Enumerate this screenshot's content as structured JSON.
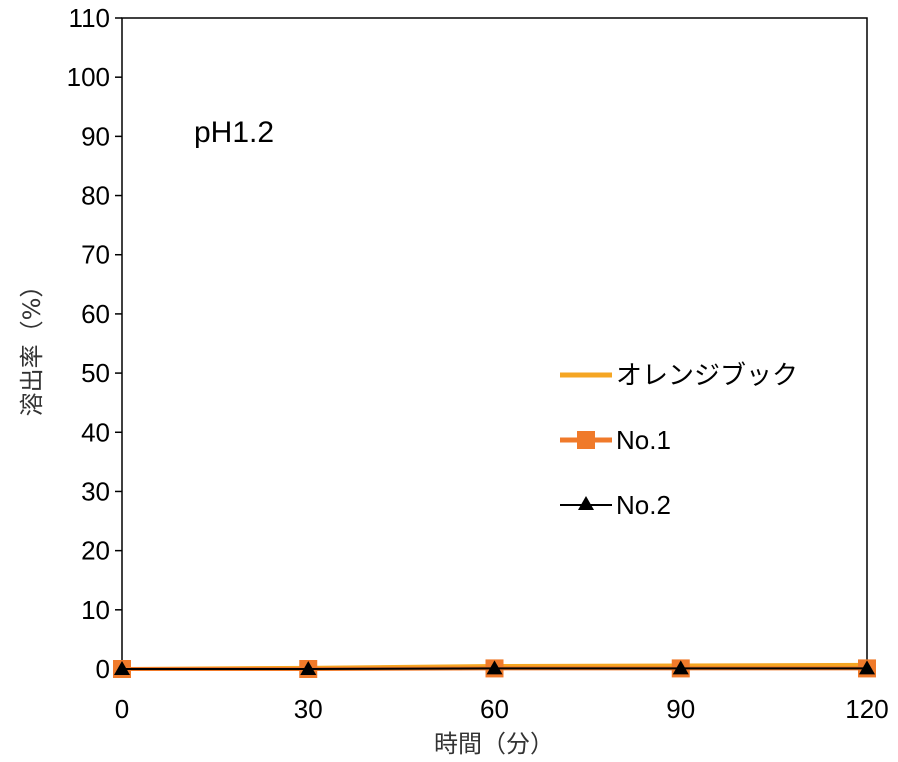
{
  "chart_data": {
    "type": "line",
    "xlabel": "時間（分）",
    "ylabel": "溶出率（%）",
    "annotation": "pH1.2",
    "x": [
      0,
      30,
      60,
      90,
      120
    ],
    "xticks": [
      "0",
      "30",
      "60",
      "90",
      "120"
    ],
    "yticks": [
      "0",
      "10",
      "20",
      "30",
      "40",
      "50",
      "60",
      "70",
      "80",
      "90",
      "100",
      "110"
    ],
    "xlim": [
      0,
      120
    ],
    "ylim": [
      0,
      110
    ],
    "grid": false,
    "legend_position": "right-middle",
    "series": [
      {
        "name": "オレンジブック",
        "values": [
          0,
          0.2,
          0.5,
          0.6,
          0.7
        ],
        "color": "#F5A623",
        "marker": "none"
      },
      {
        "name": "No.1",
        "values": [
          0,
          0,
          0.1,
          0.1,
          0.1
        ],
        "color": "#F07A2A",
        "marker": "square"
      },
      {
        "name": "No.2",
        "values": [
          0,
          0,
          0.1,
          0.1,
          0.1
        ],
        "color": "#000000",
        "marker": "triangle"
      }
    ]
  }
}
